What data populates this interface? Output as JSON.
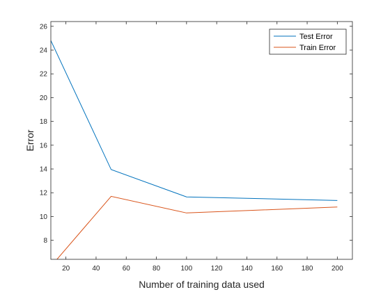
{
  "chart_data": {
    "type": "line",
    "title": "",
    "xlabel": "Number of training data used",
    "ylabel": "Error",
    "xlim": [
      10,
      210
    ],
    "ylim": [
      6.4,
      26.4
    ],
    "xticks": [
      20,
      40,
      60,
      80,
      100,
      120,
      140,
      160,
      180,
      200
    ],
    "yticks": [
      8,
      10,
      12,
      14,
      16,
      18,
      20,
      22,
      24,
      26
    ],
    "grid": false,
    "legend_position": "top-right",
    "series": [
      {
        "name": "Test Error",
        "color": "#0072BD",
        "x": [
          10,
          50,
          100,
          200
        ],
        "y": [
          24.8,
          13.95,
          11.65,
          11.35
        ]
      },
      {
        "name": "Train Error",
        "color": "#D95319",
        "x": [
          10,
          50,
          100,
          200
        ],
        "y": [
          5.8,
          11.7,
          10.3,
          10.8
        ]
      }
    ]
  }
}
